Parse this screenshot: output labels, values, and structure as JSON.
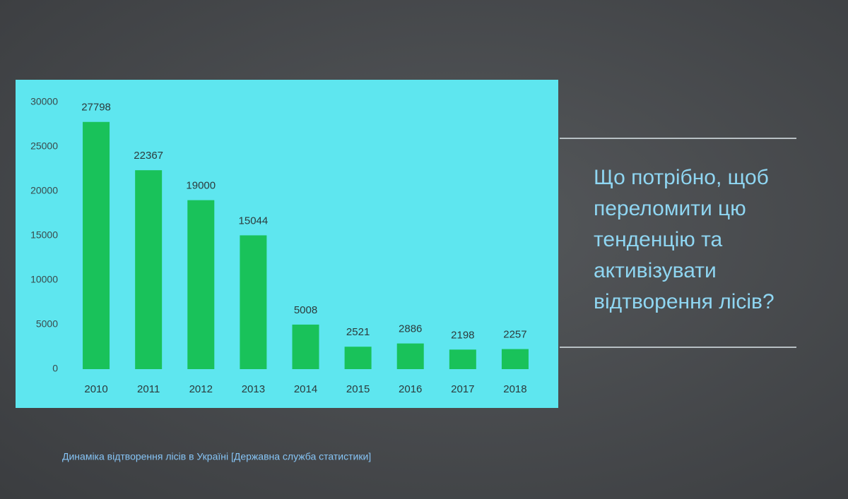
{
  "chart_data": {
    "type": "bar",
    "categories": [
      "2010",
      "2011",
      "2012",
      "2013",
      "2014",
      "2015",
      "2016",
      "2017",
      "2018"
    ],
    "values": [
      27798,
      22367,
      19000,
      15044,
      5008,
      2521,
      2886,
      2198,
      2257
    ],
    "color": "#19c25a",
    "ylim": [
      0,
      30000
    ],
    "yticks": [
      0,
      5000,
      10000,
      15000,
      20000,
      25000,
      30000
    ],
    "grid": false
  },
  "slide": {
    "question_lines": [
      "Що потрібно, щоб",
      "переломити цю",
      "тенденцію та",
      "активізувати",
      "відтворення лісів?"
    ],
    "caption": "Динаміка відтворення лісів в Україні [Державна служба статистики]"
  }
}
